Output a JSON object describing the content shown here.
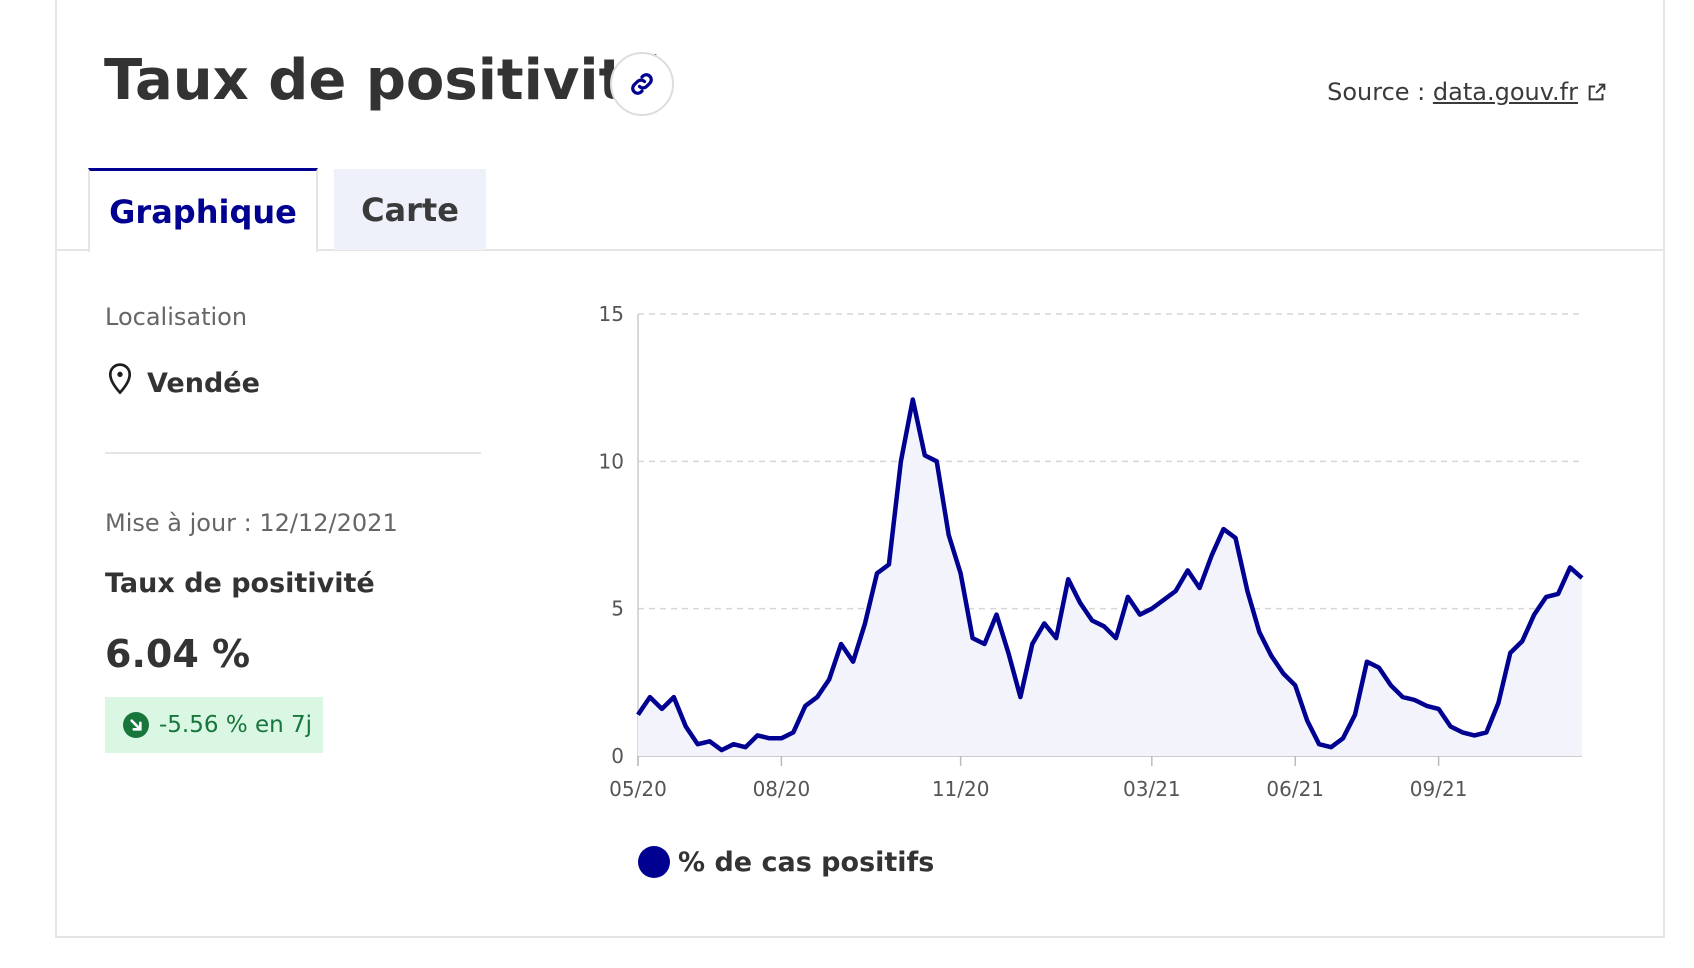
{
  "header": {
    "title": "Taux de positivité",
    "source_prefix": "Source : ",
    "source_link": "data.gouv.fr"
  },
  "tabs": [
    {
      "label": "Graphique",
      "active": true
    },
    {
      "label": "Carte",
      "active": false
    }
  ],
  "sidebar": {
    "location_label": "Localisation",
    "location_value": "Vendée",
    "updated": "Mise à jour : 12/12/2021",
    "metric_title": "Taux de positivité",
    "metric_value": "6.04 %",
    "trend": "-5.56 % en 7j"
  },
  "colors": {
    "accent": "#000091",
    "trend_bg": "#d9f7e3",
    "trend_text": "#18753c"
  },
  "chart_data": {
    "type": "area",
    "ylim": [
      0,
      15
    ],
    "y_ticks": [
      0,
      5,
      10,
      15
    ],
    "x_ticks": [
      "05/20",
      "08/20",
      "11/20",
      "03/21",
      "06/21",
      "09/21"
    ],
    "grid": "horizontal-dashed",
    "legend": "% de cas positifs",
    "series": [
      {
        "name": "% de cas positifs",
        "points": [
          [
            "05/20",
            1.4
          ],
          [
            "05/20+",
            2.0
          ],
          [
            "05/20++",
            1.6
          ],
          [
            "05/20+++",
            2.0
          ],
          [
            "06/20",
            1.0
          ],
          [
            "06/20+",
            0.4
          ],
          [
            "06/20++",
            0.5
          ],
          [
            "06/20+++",
            0.2
          ],
          [
            "07/20",
            0.4
          ],
          [
            "07/20+",
            0.3
          ],
          [
            "07/20++",
            0.7
          ],
          [
            "07/20+++",
            0.6
          ],
          [
            "08/20",
            0.6
          ],
          [
            "08/20+",
            0.8
          ],
          [
            "08/20++",
            1.7
          ],
          [
            "08/20+++",
            2.0
          ],
          [
            "09/20",
            2.6
          ],
          [
            "09/20+",
            3.8
          ],
          [
            "09/20++",
            3.2
          ],
          [
            "09/20+++",
            4.5
          ],
          [
            "10/20",
            6.2
          ],
          [
            "10/20+",
            6.5
          ],
          [
            "10/20++",
            10.0
          ],
          [
            "10/20+++",
            12.1
          ],
          [
            "10/20#",
            10.2
          ],
          [
            "10/20##",
            10.0
          ],
          [
            "10/20###",
            7.5
          ],
          [
            "11/20",
            6.2
          ],
          [
            "11/20+",
            4.0
          ],
          [
            "11/20++",
            3.8
          ],
          [
            "11/20+++",
            4.8
          ],
          [
            "12/20",
            3.5
          ],
          [
            "12/20+",
            2.0
          ],
          [
            "12/20++",
            3.8
          ],
          [
            "12/20+++",
            4.5
          ],
          [
            "01/21",
            4.0
          ],
          [
            "01/21+",
            6.0
          ],
          [
            "01/21++",
            5.2
          ],
          [
            "01/21+++",
            4.6
          ],
          [
            "02/21",
            4.4
          ],
          [
            "02/21+",
            4.0
          ],
          [
            "02/21++",
            5.4
          ],
          [
            "02/21+++",
            4.8
          ],
          [
            "03/21",
            5.0
          ],
          [
            "03/21+",
            5.3
          ],
          [
            "03/21++",
            5.6
          ],
          [
            "03/21+++",
            6.3
          ],
          [
            "04/21",
            5.7
          ],
          [
            "04/21+",
            6.8
          ],
          [
            "04/21++",
            7.7
          ],
          [
            "04/21+++",
            7.4
          ],
          [
            "05/21",
            5.6
          ],
          [
            "05/21+",
            4.2
          ],
          [
            "05/21++",
            3.4
          ],
          [
            "05/21+++",
            2.8
          ],
          [
            "06/21",
            2.4
          ],
          [
            "06/21+",
            1.2
          ],
          [
            "06/21++",
            0.4
          ],
          [
            "06/21+++",
            0.3
          ],
          [
            "07/21",
            0.6
          ],
          [
            "07/21+",
            1.4
          ],
          [
            "07/21++",
            3.2
          ],
          [
            "07/21+++",
            3.0
          ],
          [
            "08/21",
            2.4
          ],
          [
            "08/21+",
            2.0
          ],
          [
            "08/21++",
            1.9
          ],
          [
            "08/21+++",
            1.7
          ],
          [
            "09/21",
            1.6
          ],
          [
            "09/21+",
            1.0
          ],
          [
            "09/21++",
            0.8
          ],
          [
            "09/21+++",
            0.7
          ],
          [
            "10/21",
            0.8
          ],
          [
            "10/21+",
            1.8
          ],
          [
            "10/21++",
            3.5
          ],
          [
            "10/21+++",
            3.9
          ],
          [
            "11/21",
            4.8
          ],
          [
            "11/21+",
            5.4
          ],
          [
            "11/21++",
            5.5
          ],
          [
            "11/21+++",
            6.4
          ],
          [
            "12/21",
            6.04
          ]
        ]
      }
    ]
  }
}
